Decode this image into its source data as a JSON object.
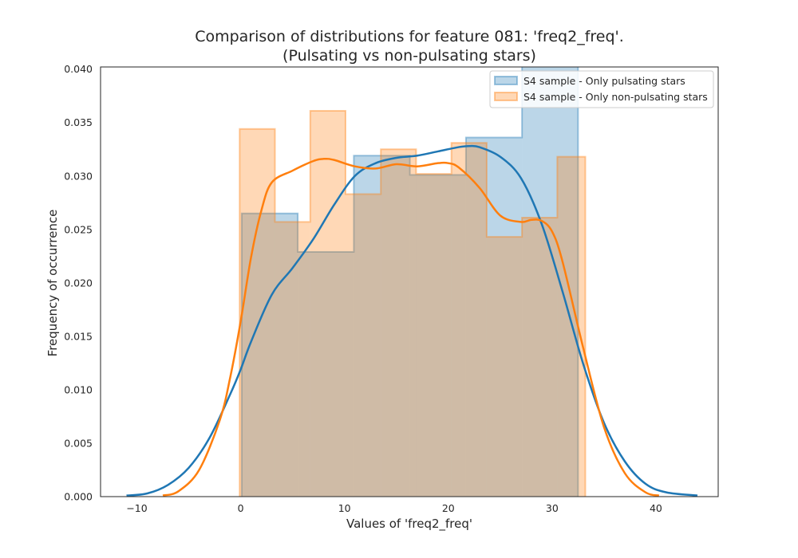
{
  "chart_data": {
    "type": "histogram",
    "title_line1": "Comparison of distributions for feature 081: 'freq2_freq'.",
    "title_line2": "(Pulsating vs non-pulsating stars)",
    "xlabel": "Values of 'freq2_freq'",
    "ylabel": "Frequency of occurrence",
    "xlim": [
      -13.5,
      46
    ],
    "ylim": [
      0,
      0.0402
    ],
    "xticks": [
      -10,
      0,
      10,
      20,
      30,
      40
    ],
    "xtick_labels": [
      "−10",
      "0",
      "10",
      "20",
      "30",
      "40"
    ],
    "yticks": [
      0,
      0.005,
      0.01,
      0.015,
      0.02,
      0.025,
      0.03,
      0.035,
      0.04
    ],
    "ytick_labels": [
      "0.000",
      "0.005",
      "0.010",
      "0.015",
      "0.020",
      "0.025",
      "0.030",
      "0.035",
      "0.040"
    ],
    "legend_position": "top-right",
    "grid": false,
    "series": [
      {
        "name": "S4 sample - Only pulsating stars",
        "color": "#1f77b4",
        "bin_edges": [
          0.1,
          5.5,
          10.9,
          16.3,
          21.7,
          27.1,
          32.5
        ],
        "bin_values": [
          0.0265,
          0.0229,
          0.0319,
          0.0301,
          0.0336,
          0.0405
        ],
        "kde_x": [
          -11,
          -9,
          -7,
          -5,
          -3,
          -1,
          0,
          1,
          3,
          5,
          7,
          9,
          11,
          13,
          15,
          17,
          19,
          21,
          22,
          23,
          25,
          27,
          29,
          31,
          33,
          35,
          37,
          39,
          41,
          44
        ],
        "kde_y": [
          0.0001,
          0.0003,
          0.0011,
          0.0027,
          0.0055,
          0.0096,
          0.0119,
          0.0145,
          0.0189,
          0.0214,
          0.0241,
          0.0273,
          0.03,
          0.0312,
          0.0317,
          0.0319,
          0.0323,
          0.0327,
          0.0328,
          0.0327,
          0.0318,
          0.0298,
          0.0255,
          0.0192,
          0.0124,
          0.0069,
          0.0033,
          0.0012,
          0.0004,
          0.0001
        ]
      },
      {
        "name": "S4 sample - Only non-pulsating stars",
        "color": "#ff7f0e",
        "bin_edges": [
          -0.1,
          3.3,
          6.7,
          10.1,
          13.5,
          16.9,
          20.3,
          23.7,
          27.1,
          30.5,
          33.2
        ],
        "bin_values": [
          0.0344,
          0.0257,
          0.0361,
          0.0283,
          0.0325,
          0.0302,
          0.0331,
          0.0243,
          0.0261,
          0.0318
        ],
        "kde_x": [
          -7.5,
          -6,
          -4,
          -2,
          -1,
          0,
          1,
          2,
          3,
          5,
          7,
          8,
          9,
          11,
          13,
          15,
          17,
          19,
          20,
          21,
          23,
          25,
          27,
          28,
          29,
          30,
          31,
          33,
          35,
          37,
          39,
          40.3
        ],
        "kde_y": [
          0.0001,
          0.0005,
          0.0025,
          0.0072,
          0.0112,
          0.0164,
          0.0224,
          0.0268,
          0.0294,
          0.0305,
          0.0314,
          0.0316,
          0.0315,
          0.0309,
          0.0307,
          0.0311,
          0.0309,
          0.0312,
          0.0312,
          0.0308,
          0.0289,
          0.0263,
          0.0257,
          0.0259,
          0.0258,
          0.0248,
          0.022,
          0.0139,
          0.0065,
          0.0022,
          0.0004,
          0.0001
        ]
      }
    ]
  }
}
